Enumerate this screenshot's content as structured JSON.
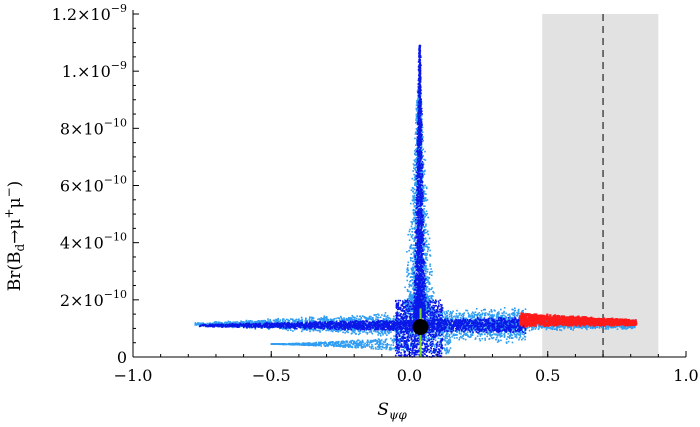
{
  "colors": {
    "light_band": "#2f9df2",
    "dark_band": "#0a18e8",
    "red_cluster": "#ff1a1a",
    "central_line": "#7ddc2a",
    "marker": "#000000",
    "exclusion_band": "#e2e2e2",
    "dashed_line": "#333333"
  },
  "chart_data": {
    "type": "scatter",
    "xlabel_parts": [
      "S",
      "ψφ"
    ],
    "ylabel_parts": [
      "Br(B",
      "d",
      "→μ",
      "+",
      "μ",
      "−",
      ")"
    ],
    "xlim": [
      -1.0,
      1.0
    ],
    "ylim": [
      0,
      1.2e-09
    ],
    "x_ticks": [
      {
        "value": -1.0,
        "label": "−1.0"
      },
      {
        "value": -0.5,
        "label": "−0.5"
      },
      {
        "value": 0.0,
        "label": "0.0"
      },
      {
        "value": 0.5,
        "label": "0.5"
      },
      {
        "value": 1.0,
        "label": "1.0"
      }
    ],
    "y_ticks": [
      {
        "value": 0,
        "mantissa": "0",
        "exp": ""
      },
      {
        "value": 2e-10,
        "mantissa": "2×10",
        "exp": "−10"
      },
      {
        "value": 4e-10,
        "mantissa": "4×10",
        "exp": "−10"
      },
      {
        "value": 6e-10,
        "mantissa": "6×10",
        "exp": "−10"
      },
      {
        "value": 8e-10,
        "mantissa": "8×10",
        "exp": "−10"
      },
      {
        "value": 1e-09,
        "mantissa": "1.×10",
        "exp": "−9"
      },
      {
        "value": 1.2e-09,
        "mantissa": "1.2×10",
        "exp": "−9"
      }
    ],
    "exclusion_band_x": [
      0.48,
      0.9
    ],
    "dashed_line_x": 0.7,
    "central_line_x": 0.04,
    "central_line_y": [
      0,
      1.7e-10
    ],
    "marker_point": {
      "x": 0.04,
      "y": 1.05e-10
    },
    "series": [
      {
        "color_key": "light_band",
        "regions": [
          {
            "kind": "wedge",
            "x": [
              -0.78,
              0.42
            ],
            "center_y": [
              1.15e-10,
              1.12e-10
            ],
            "half_width": [
              5e-12,
              7e-11
            ],
            "density": 2600
          },
          {
            "kind": "lower_lobe",
            "x": [
              -0.5,
              0.15
            ],
            "center_y": 4.5e-11,
            "half_width": 3.5e-11,
            "density": 700
          },
          {
            "kind": "spike",
            "x_center": 0.035,
            "y": [
              1.6e-10,
              9.4e-10
            ],
            "half_width": [
              0.06,
              0.006
            ],
            "density": 1600
          },
          {
            "kind": "right_arm",
            "x": [
              0.2,
              0.82
            ],
            "center_y": [
              1.15e-10,
              1.15e-10
            ],
            "half_width": [
              3e-11,
              1.8e-11
            ],
            "density": 900
          }
        ]
      },
      {
        "color_key": "dark_band",
        "regions": [
          {
            "kind": "wedge",
            "x": [
              -0.76,
              0.42
            ],
            "center_y": [
              1.1e-10,
              1.12e-10
            ],
            "half_width": [
              4e-12,
              3.2e-11
            ],
            "density": 2400
          },
          {
            "kind": "spike",
            "x_center": 0.037,
            "y": [
              1.4e-10,
              1.09e-09
            ],
            "half_width": [
              0.025,
              0.003
            ],
            "density": 1800
          },
          {
            "kind": "core",
            "x": [
              -0.05,
              0.12
            ],
            "center_y": 1e-10,
            "half_width": 1e-10,
            "density": 900
          }
        ]
      },
      {
        "color_key": "red_cluster",
        "regions": [
          {
            "kind": "wedge",
            "x": [
              0.4,
              0.82
            ],
            "center_y": [
              1.3e-10,
              1.2e-10
            ],
            "half_width": [
              2.5e-11,
              1e-11
            ],
            "density": 1400
          }
        ]
      }
    ]
  }
}
